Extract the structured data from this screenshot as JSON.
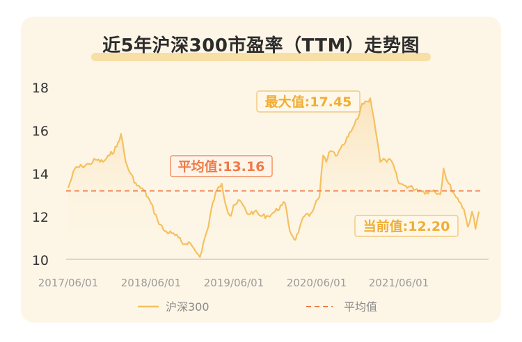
{
  "chart_data": {
    "type": "line",
    "title": "近5年沪深300市盈率（TTM）走势图",
    "y_ticks": [
      "18",
      "16",
      "14",
      "12",
      "10"
    ],
    "x_ticks": [
      "2017/06/01",
      "2018/06/01",
      "2019/06/01",
      "2020/06/01",
      "2021/06/01"
    ],
    "ylim": [
      10,
      18
    ],
    "xlim": [
      "2017/06/01",
      "2022/06/01"
    ],
    "grid": false,
    "legend_position": "bottom",
    "series": [
      {
        "name": "沪深300",
        "color": "#f5c060",
        "x": [
          "2017/06/01",
          "2017/07/01",
          "2017/08/01",
          "2017/09/01",
          "2017/10/01",
          "2017/11/01",
          "2017/12/01",
          "2018/01/01",
          "2018/01/20",
          "2018/02/10",
          "2018/03/01",
          "2018/04/01",
          "2018/05/01",
          "2018/06/01",
          "2018/07/01",
          "2018/08/01",
          "2018/09/01",
          "2018/10/01",
          "2018/10/20",
          "2018/11/15",
          "2018/12/01",
          "2018/12/20",
          "2019/01/04",
          "2019/01/20",
          "2019/02/10",
          "2019/03/01",
          "2019/03/20",
          "2019/04/10",
          "2019/05/01",
          "2019/05/20",
          "2019/06/01",
          "2019/07/01",
          "2019/08/01",
          "2019/09/01",
          "2019/10/01",
          "2019/11/01",
          "2019/12/01",
          "2020/01/01",
          "2020/01/15",
          "2020/02/05",
          "2020/03/01",
          "2020/03/20",
          "2020/04/10",
          "2020/05/01",
          "2020/05/25",
          "2020/06/15",
          "2020/07/01",
          "2020/07/15",
          "2020/08/01",
          "2020/09/01",
          "2020/10/01",
          "2020/11/01",
          "2020/12/01",
          "2020/12/20",
          "2021/01/10",
          "2021/01/25",
          "2021/02/10",
          "2021/02/25",
          "2021/03/10",
          "2021/04/01",
          "2021/05/01",
          "2021/06/01",
          "2021/07/01",
          "2021/08/01",
          "2021/09/01",
          "2021/10/01",
          "2021/11/01",
          "2021/12/01",
          "2021/12/15",
          "2022/01/01",
          "2022/02/01",
          "2022/03/01",
          "2022/03/15",
          "2022/04/01",
          "2022/04/20",
          "2022/05/05",
          "2022/05/20"
        ],
        "values": [
          13.3,
          14.2,
          14.3,
          14.4,
          14.6,
          14.5,
          14.8,
          15.2,
          15.8,
          14.5,
          14.0,
          13.4,
          13.2,
          12.6,
          11.8,
          11.3,
          11.2,
          11.0,
          10.7,
          10.8,
          10.6,
          10.3,
          10.1,
          10.8,
          11.5,
          12.6,
          13.2,
          13.5,
          12.4,
          12.0,
          12.5,
          12.7,
          12.1,
          12.2,
          12.0,
          12.0,
          12.2,
          12.5,
          12.6,
          11.3,
          10.9,
          11.5,
          12.0,
          12.0,
          12.5,
          12.9,
          14.8,
          14.5,
          15.0,
          14.8,
          15.3,
          15.9,
          16.5,
          17.2,
          17.3,
          17.45,
          16.5,
          15.5,
          14.5,
          14.6,
          14.5,
          13.5,
          13.4,
          13.3,
          13.2,
          13.1,
          13.2,
          13.0,
          14.2,
          13.6,
          13.0,
          12.6,
          12.3,
          11.5,
          12.2,
          11.4,
          12.2
        ]
      },
      {
        "name": "平均值",
        "color": "#ee7b47",
        "values": [
          13.16
        ]
      }
    ],
    "annotations": [
      {
        "text": "平均值:13.16",
        "color": "#ee7b47"
      },
      {
        "text": "最大值:17.45",
        "color": "#f0ad37"
      },
      {
        "text": "当前值:12.20",
        "color": "#f0ad37"
      }
    ]
  }
}
